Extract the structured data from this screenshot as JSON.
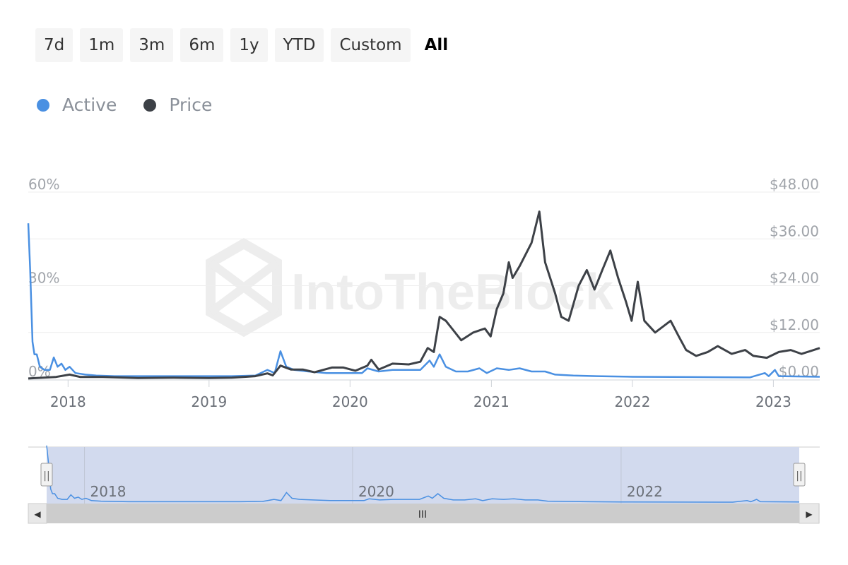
{
  "range_buttons": [
    "7d",
    "1m",
    "3m",
    "6m",
    "1y",
    "YTD",
    "Custom",
    "All"
  ],
  "active_range": "All",
  "legend": [
    {
      "label": "Active",
      "color": "#4a90e2"
    },
    {
      "label": "Price",
      "color": "#3d4147"
    }
  ],
  "watermark": "IntoTheBlock",
  "navigator": {
    "labels": [
      "2018",
      "2020",
      "2022"
    ],
    "thumb_grip": "III",
    "left_arrow": "◀",
    "right_arrow": "▶",
    "handle_grip": "||"
  },
  "chart_data": {
    "type": "line",
    "x_range": [
      "2017-09-20",
      "2023-05-01"
    ],
    "x_ticks": [
      "2018",
      "2019",
      "2020",
      "2021",
      "2022",
      "2023"
    ],
    "y_left": {
      "ticks": [
        "0%",
        "30%",
        "60%"
      ],
      "range": [
        0,
        60
      ]
    },
    "y_right": {
      "ticks": [
        "$0.00",
        "$12.00",
        "$24.00",
        "$36.00",
        "$48.00"
      ],
      "range": [
        0,
        48
      ]
    },
    "series": [
      {
        "name": "Active",
        "axis": "left",
        "color": "#4a90e2",
        "points": [
          [
            "2017-09-20",
            50
          ],
          [
            "2017-09-25",
            35
          ],
          [
            "2017-10-01",
            12
          ],
          [
            "2017-10-06",
            8
          ],
          [
            "2017-10-12",
            8
          ],
          [
            "2017-10-20",
            4
          ],
          [
            "2017-11-01",
            3
          ],
          [
            "2017-11-15",
            3
          ],
          [
            "2017-11-25",
            7
          ],
          [
            "2017-12-05",
            4
          ],
          [
            "2017-12-15",
            5
          ],
          [
            "2017-12-25",
            3
          ],
          [
            "2018-01-05",
            4
          ],
          [
            "2018-01-20",
            2
          ],
          [
            "2018-02-15",
            1.5
          ],
          [
            "2018-03-15",
            1.2
          ],
          [
            "2018-05-01",
            1
          ],
          [
            "2018-07-01",
            1
          ],
          [
            "2018-09-01",
            1
          ],
          [
            "2018-11-01",
            1
          ],
          [
            "2019-01-01",
            1
          ],
          [
            "2019-03-01",
            1
          ],
          [
            "2019-05-01",
            1.2
          ],
          [
            "2019-06-01",
            3
          ],
          [
            "2019-06-20",
            2
          ],
          [
            "2019-07-05",
            9
          ],
          [
            "2019-07-20",
            4
          ],
          [
            "2019-08-10",
            3
          ],
          [
            "2019-09-15",
            2.5
          ],
          [
            "2019-11-01",
            2
          ],
          [
            "2020-01-01",
            2
          ],
          [
            "2020-02-01",
            2
          ],
          [
            "2020-02-15",
            3.5
          ],
          [
            "2020-03-15",
            2.5
          ],
          [
            "2020-04-20",
            3
          ],
          [
            "2020-06-01",
            3
          ],
          [
            "2020-07-01",
            3
          ],
          [
            "2020-07-25",
            6
          ],
          [
            "2020-08-05",
            4
          ],
          [
            "2020-08-20",
            8
          ],
          [
            "2020-09-05",
            4
          ],
          [
            "2020-10-01",
            2.5
          ],
          [
            "2020-11-01",
            2.5
          ],
          [
            "2020-12-01",
            3.5
          ],
          [
            "2020-12-20",
            2
          ],
          [
            "2021-01-15",
            3.5
          ],
          [
            "2021-02-15",
            3
          ],
          [
            "2021-03-15",
            3.5
          ],
          [
            "2021-04-15",
            2.5
          ],
          [
            "2021-05-20",
            2.5
          ],
          [
            "2021-06-15",
            1.5
          ],
          [
            "2021-08-01",
            1.2
          ],
          [
            "2021-10-01",
            1
          ],
          [
            "2022-01-01",
            0.8
          ],
          [
            "2022-06-01",
            0.7
          ],
          [
            "2022-11-01",
            0.6
          ],
          [
            "2022-12-10",
            2
          ],
          [
            "2022-12-20",
            1
          ],
          [
            "2023-01-05",
            3
          ],
          [
            "2023-01-15",
            1
          ],
          [
            "2023-05-01",
            0.8
          ]
        ]
      },
      {
        "name": "Price",
        "axis": "right",
        "color": "#3d4147",
        "points": [
          [
            "2017-09-20",
            0.2
          ],
          [
            "2017-12-01",
            0.6
          ],
          [
            "2018-01-05",
            1.2
          ],
          [
            "2018-02-01",
            0.6
          ],
          [
            "2018-04-01",
            0.6
          ],
          [
            "2018-07-01",
            0.3
          ],
          [
            "2018-10-01",
            0.4
          ],
          [
            "2019-01-01",
            0.3
          ],
          [
            "2019-03-01",
            0.4
          ],
          [
            "2019-05-01",
            0.8
          ],
          [
            "2019-06-01",
            1.5
          ],
          [
            "2019-06-15",
            1.0
          ],
          [
            "2019-07-05",
            3.5
          ],
          [
            "2019-08-01",
            2.5
          ],
          [
            "2019-09-01",
            2.5
          ],
          [
            "2019-10-01",
            1.8
          ],
          [
            "2019-11-15",
            3.0
          ],
          [
            "2019-12-15",
            3.0
          ],
          [
            "2020-01-15",
            2.2
          ],
          [
            "2020-02-15",
            3.5
          ],
          [
            "2020-02-25",
            5.0
          ],
          [
            "2020-03-15",
            2.5
          ],
          [
            "2020-04-20",
            4.0
          ],
          [
            "2020-06-01",
            3.8
          ],
          [
            "2020-07-01",
            4.5
          ],
          [
            "2020-07-20",
            8.0
          ],
          [
            "2020-08-05",
            7.0
          ],
          [
            "2020-08-20",
            16.0
          ],
          [
            "2020-09-05",
            15.0
          ],
          [
            "2020-10-15",
            10.0
          ],
          [
            "2020-11-15",
            12.0
          ],
          [
            "2020-12-15",
            13.0
          ],
          [
            "2020-12-30",
            11.0
          ],
          [
            "2021-01-15",
            18.0
          ],
          [
            "2021-02-01",
            22.0
          ],
          [
            "2021-02-15",
            30.0
          ],
          [
            "2021-02-25",
            26.0
          ],
          [
            "2021-03-15",
            29.0
          ],
          [
            "2021-04-15",
            35.0
          ],
          [
            "2021-05-05",
            43.0
          ],
          [
            "2021-05-20",
            30.0
          ],
          [
            "2021-06-15",
            22.0
          ],
          [
            "2021-07-01",
            16.0
          ],
          [
            "2021-07-20",
            15.0
          ],
          [
            "2021-08-15",
            24.0
          ],
          [
            "2021-09-05",
            28.0
          ],
          [
            "2021-09-25",
            23.0
          ],
          [
            "2021-10-15",
            28.0
          ],
          [
            "2021-11-05",
            33.0
          ],
          [
            "2021-11-25",
            26.0
          ],
          [
            "2021-12-15",
            20.0
          ],
          [
            "2021-12-30",
            15.0
          ],
          [
            "2022-01-15",
            25.0
          ],
          [
            "2022-02-01",
            15.0
          ],
          [
            "2022-03-01",
            12.0
          ],
          [
            "2022-04-10",
            15.0
          ],
          [
            "2022-05-01",
            11.0
          ],
          [
            "2022-05-20",
            7.5
          ],
          [
            "2022-06-15",
            6.0
          ],
          [
            "2022-07-15",
            7.0
          ],
          [
            "2022-08-10",
            8.5
          ],
          [
            "2022-09-15",
            6.5
          ],
          [
            "2022-10-20",
            7.5
          ],
          [
            "2022-11-10",
            6.0
          ],
          [
            "2022-12-15",
            5.5
          ],
          [
            "2023-01-15",
            7.0
          ],
          [
            "2023-02-15",
            7.5
          ],
          [
            "2023-03-15",
            6.5
          ],
          [
            "2023-05-01",
            8.0
          ]
        ]
      }
    ],
    "grid": true,
    "legend_position": "top-left"
  }
}
